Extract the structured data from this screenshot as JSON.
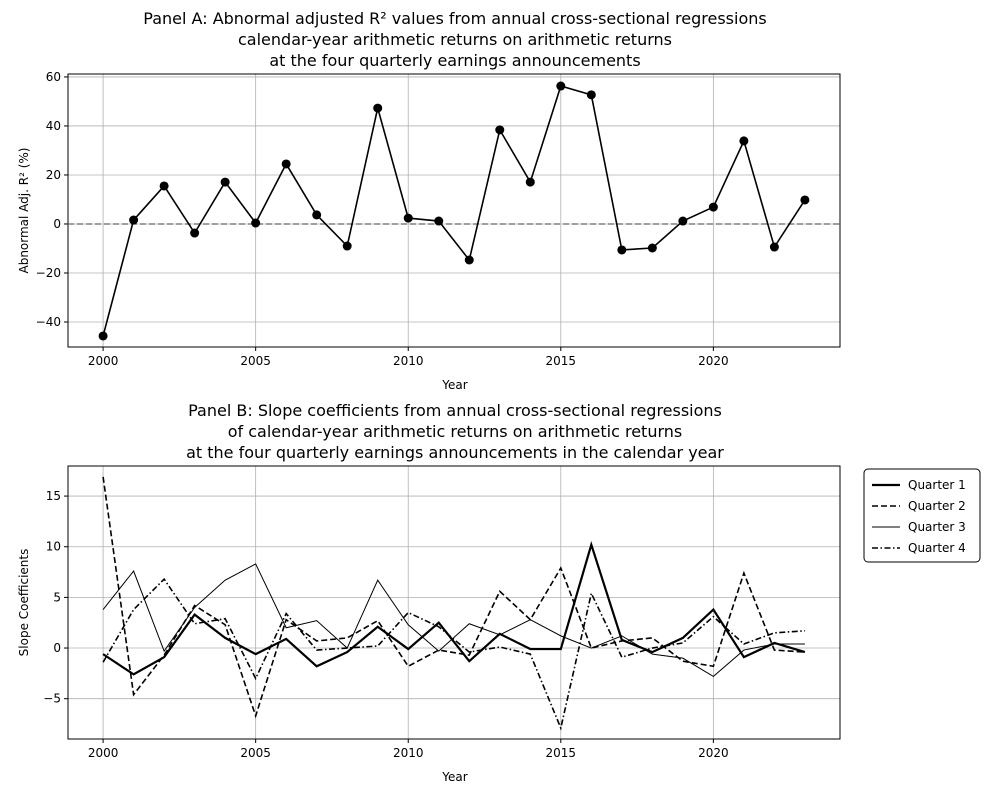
{
  "chart_data": [
    {
      "type": "line",
      "title": [
        "Panel A: Abnormal adjusted R² values from annual cross-sectional regressions",
        "calendar-year arithmetic returns on arithmetic returns",
        "at the four quarterly earnings announcements"
      ],
      "xlabel": "Year",
      "ylabel": "Abnormal Adj. R² (%)",
      "xlim": [
        1998.85,
        2024.15
      ],
      "ylim": [
        -50.2,
        61.2
      ],
      "xticks": [
        2000,
        2005,
        2010,
        2015,
        2020
      ],
      "yticks": [
        -40,
        -20,
        0,
        20,
        40,
        60
      ],
      "grid": true,
      "reference_line": {
        "y": 0,
        "style": "dashed",
        "color": "#808080"
      },
      "x": [
        2000,
        2001,
        2002,
        2003,
        2004,
        2005,
        2006,
        2007,
        2008,
        2009,
        2010,
        2011,
        2012,
        2013,
        2014,
        2015,
        2016,
        2017,
        2018,
        2019,
        2020,
        2021,
        2022,
        2023
      ],
      "series": [
        {
          "values": [
            -45.7,
            1.6,
            15.5,
            -3.7,
            17.1,
            0.4,
            24.5,
            3.7,
            -9.0,
            47.3,
            2.4,
            1.2,
            -14.7,
            38.4,
            17.1,
            56.3,
            52.7,
            -10.6,
            -9.8,
            1.2,
            6.9,
            33.9,
            -9.4,
            9.8
          ],
          "color": "#000000",
          "marker": "circle"
        }
      ]
    },
    {
      "type": "line",
      "title": [
        "Panel B: Slope coefficients from annual cross-sectional regressions",
        "of calendar-year arithmetic returns on arithmetic returns",
        "at the four quarterly earnings announcements in the calendar year"
      ],
      "xlabel": "Year",
      "ylabel": "Slope Coefficients",
      "xlim": [
        1998.85,
        2024.15
      ],
      "ylim": [
        -8.98,
        17.97
      ],
      "xticks": [
        2000,
        2005,
        2010,
        2015,
        2020
      ],
      "yticks": [
        -5,
        0,
        5,
        10,
        15
      ],
      "grid": true,
      "legend": "outside-right-top",
      "x": [
        2000,
        2001,
        2002,
        2003,
        2004,
        2005,
        2006,
        2007,
        2008,
        2009,
        2010,
        2011,
        2012,
        2013,
        2014,
        2015,
        2016,
        2017,
        2018,
        2019,
        2020,
        2021,
        2022,
        2023
      ],
      "series": [
        {
          "name": "Quarter 1",
          "style": "solid-thick",
          "values": [
            -0.6,
            -2.6,
            -0.9,
            3.3,
            1.0,
            -0.6,
            0.9,
            -1.8,
            -0.4,
            2.1,
            -0.1,
            2.5,
            -1.3,
            1.4,
            -0.1,
            -0.1,
            10.2,
            0.8,
            -0.4,
            1.0,
            3.8,
            -0.9,
            0.5,
            -0.4
          ]
        },
        {
          "name": "Quarter 2",
          "style": "dashed",
          "values": [
            16.9,
            -4.6,
            -0.7,
            4.2,
            2.3,
            -6.7,
            2.8,
            0.7,
            1.0,
            2.7,
            -1.8,
            -0.2,
            -0.7,
            5.6,
            2.8,
            7.9,
            0.0,
            0.7,
            1.0,
            -1.3,
            -1.8,
            7.4,
            -0.2,
            -0.4
          ]
        },
        {
          "name": "Quarter 3",
          "style": "solid-thin",
          "values": [
            3.8,
            7.6,
            -0.3,
            4.0,
            6.7,
            8.3,
            2.0,
            2.7,
            0.0,
            6.7,
            2.3,
            -0.3,
            2.4,
            1.3,
            2.8,
            1.2,
            0.0,
            1.2,
            -0.6,
            -1.0,
            -2.8,
            -0.2,
            0.4,
            0.4
          ]
        },
        {
          "name": "Quarter 4",
          "style": "dashdot",
          "values": [
            -1.4,
            3.8,
            6.8,
            2.4,
            2.9,
            -3.0,
            3.4,
            -0.2,
            0.0,
            0.2,
            3.5,
            2.1,
            -0.4,
            0.1,
            -0.6,
            -7.9,
            5.4,
            -0.9,
            0.0,
            0.5,
            3.1,
            0.4,
            1.5,
            1.7
          ]
        }
      ]
    }
  ]
}
